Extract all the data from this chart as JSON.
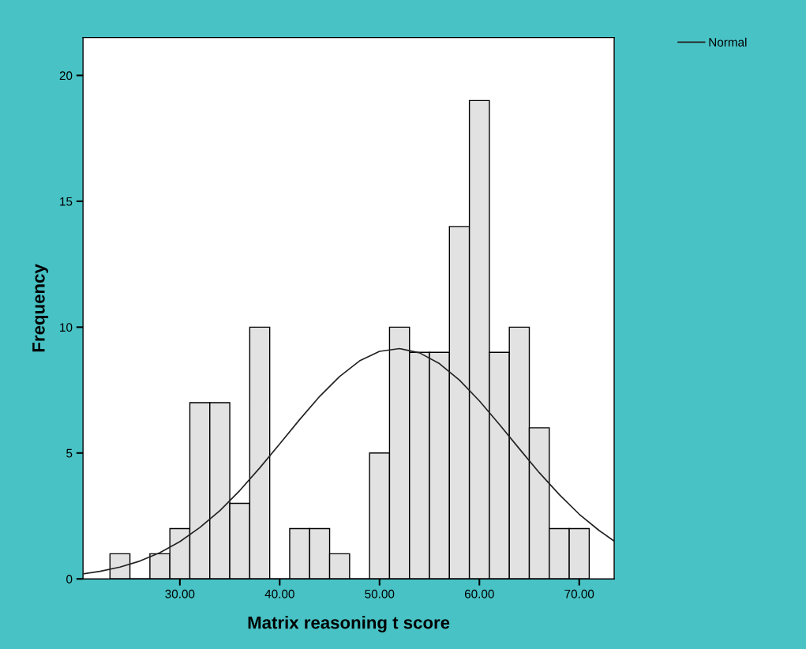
{
  "chart_data": {
    "type": "histogram",
    "xlabel": "Matrix reasoning t score",
    "ylabel": "Frequency",
    "bins": [
      23,
      25,
      27,
      29,
      31,
      33,
      35,
      37,
      39,
      41,
      43,
      45,
      47,
      49,
      51,
      53,
      55,
      57,
      59,
      61,
      63,
      65,
      67,
      69,
      71
    ],
    "series": [
      {
        "type": "histogram",
        "color": "#e2e2e2",
        "values": [
          1,
          0,
          1,
          2,
          7,
          7,
          3,
          10,
          0,
          2,
          2,
          1,
          0,
          5,
          10,
          9,
          9,
          14,
          19,
          9,
          10,
          6,
          2,
          2
        ]
      },
      {
        "type": "line",
        "name": "Normal",
        "color": "#222222",
        "x": [
          20.3,
          22,
          24,
          26,
          28,
          30,
          32,
          34,
          36,
          38,
          40,
          42,
          44,
          46,
          48,
          50,
          52,
          54,
          56,
          58,
          60,
          62,
          64,
          66,
          68,
          70,
          72,
          73.5
        ],
        "values": [
          0.2,
          0.3,
          0.47,
          0.71,
          1.04,
          1.48,
          2.04,
          2.71,
          3.51,
          4.41,
          5.36,
          6.33,
          7.25,
          8.04,
          8.66,
          9.04,
          9.15,
          8.98,
          8.55,
          7.9,
          7.07,
          6.14,
          5.17,
          4.22,
          3.35,
          2.57,
          1.92,
          1.5
        ]
      }
    ],
    "xlim": [
      20.3,
      73.5
    ],
    "ylim": [
      0,
      21.5
    ],
    "xticks": [
      {
        "value": 30,
        "label": "30.00"
      },
      {
        "value": 40,
        "label": "40.00"
      },
      {
        "value": 50,
        "label": "50.00"
      },
      {
        "value": 60,
        "label": "60.00"
      },
      {
        "value": 70,
        "label": "70.00"
      }
    ],
    "yticks": [
      0,
      5,
      10,
      15,
      20
    ],
    "legend": "top right",
    "marker": "none",
    "line_style": "solid"
  }
}
